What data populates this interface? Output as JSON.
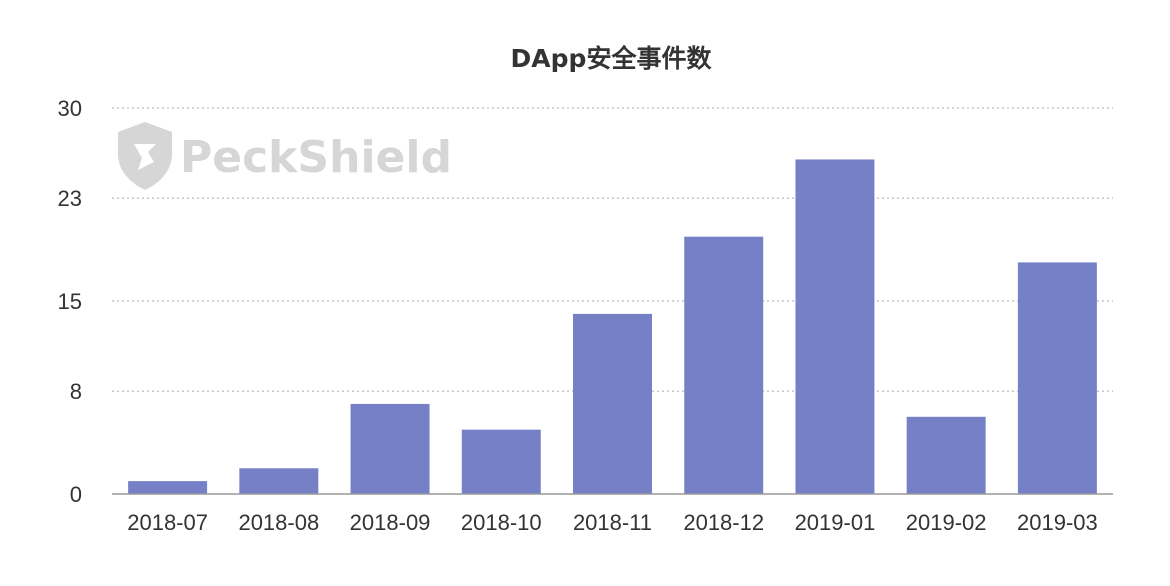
{
  "chart_data": {
    "type": "bar",
    "title": "DApp安全事件数",
    "categories": [
      "2018-07",
      "2018-08",
      "2018-09",
      "2018-10",
      "2018-11",
      "2018-12",
      "2019-01",
      "2019-02",
      "2019-03"
    ],
    "values": [
      1,
      2,
      7,
      5,
      14,
      20,
      26,
      6,
      18
    ],
    "xlabel": "",
    "ylabel": "",
    "ylim": [
      0,
      30
    ],
    "yticks": [
      0,
      8,
      15,
      23,
      30
    ],
    "grid": true,
    "legend": "none",
    "bar_color": "#7580c7"
  },
  "watermark": {
    "text": "PeckShield",
    "icon": "shield-logo-icon"
  }
}
